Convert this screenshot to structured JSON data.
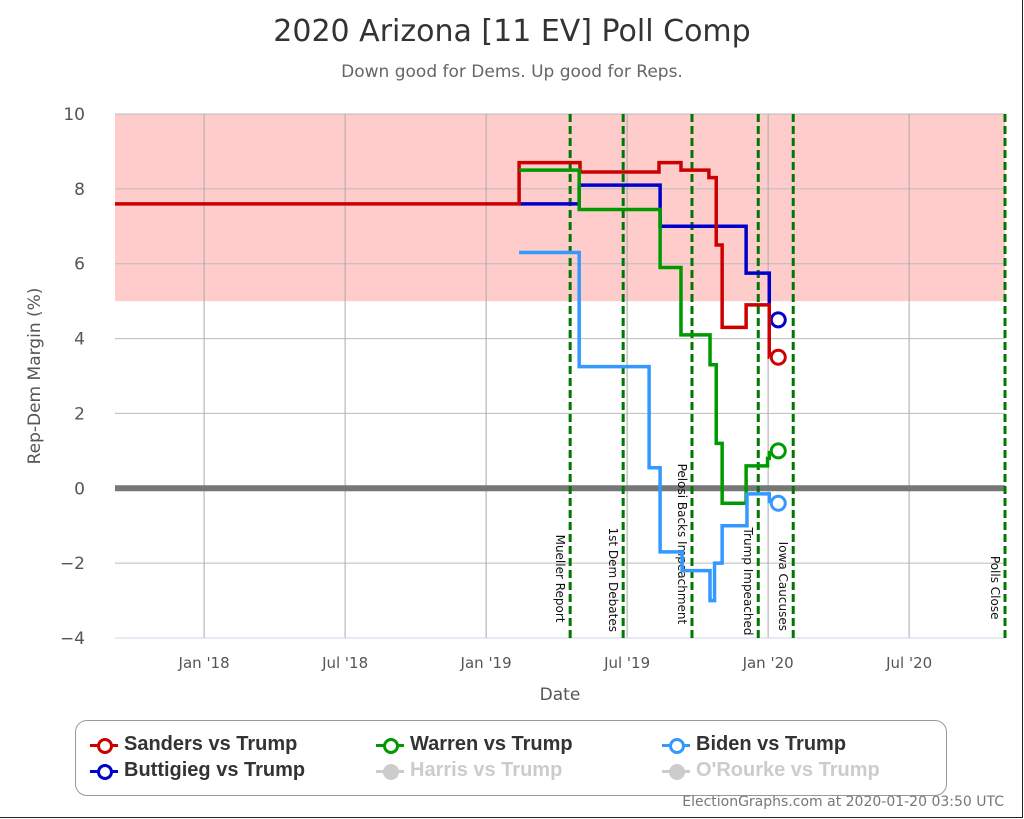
{
  "chart_data": {
    "type": "line",
    "title": "2020 Arizona [11 EV] Poll Comp",
    "subtitle": "Down good for Dems. Up good for Reps.",
    "xlabel": "Date",
    "ylabel": "Rep-Dem Margin (%)",
    "xlim": [
      2017.684,
      2020.84
    ],
    "ylim": [
      -4,
      10
    ],
    "xticks": [
      {
        "x": 2018.0,
        "label": "Jan '18"
      },
      {
        "x": 2018.5,
        "label": "Jul '18"
      },
      {
        "x": 2019.0,
        "label": "Jan '19"
      },
      {
        "x": 2019.5,
        "label": "Jul '19"
      },
      {
        "x": 2020.0,
        "label": "Jan '20"
      },
      {
        "x": 2020.5,
        "label": "Jul '20"
      }
    ],
    "yticks": [
      -4,
      -2,
      0,
      2,
      4,
      6,
      8,
      10
    ],
    "shaded_band": {
      "from": 5,
      "to": 10,
      "color": "#ffcccc"
    },
    "events": [
      {
        "x": 2019.298,
        "label": "Mueller Report"
      },
      {
        "x": 2019.486,
        "label": "1st Dem Debates"
      },
      {
        "x": 2019.73,
        "label": "Pelosi Backs Impeachment"
      },
      {
        "x": 2019.965,
        "label": "Trump Impeached"
      },
      {
        "x": 2020.089,
        "label": "Iowa Caucuses"
      },
      {
        "x": 2020.84,
        "label": "Polls Close"
      }
    ],
    "series": [
      {
        "name": "Sanders vs Trump",
        "color": "#cc0000",
        "active": true,
        "steps": [
          [
            2017.684,
            7.6
          ],
          [
            2019.117,
            8.7
          ],
          [
            2019.333,
            8.45
          ],
          [
            2019.613,
            8.7
          ],
          [
            2019.691,
            8.5
          ],
          [
            2019.79,
            8.3
          ],
          [
            2019.816,
            6.5
          ],
          [
            2019.837,
            4.3
          ],
          [
            2019.922,
            4.9
          ],
          [
            2020.004,
            3.5
          ]
        ],
        "end": [
          2020.036,
          3.5
        ]
      },
      {
        "name": "Warren vs Trump",
        "color": "#009900",
        "active": true,
        "steps": [
          [
            2019.117,
            8.5
          ],
          [
            2019.33,
            7.45
          ],
          [
            2019.617,
            5.9
          ],
          [
            2019.691,
            4.1
          ],
          [
            2019.794,
            3.3
          ],
          [
            2019.816,
            1.2
          ],
          [
            2019.837,
            -0.4
          ],
          [
            2019.922,
            0.6
          ],
          [
            2019.998,
            0.8
          ]
        ],
        "end": [
          2020.036,
          1.0
        ]
      },
      {
        "name": "Biden vs Trump",
        "color": "#3399ff",
        "active": true,
        "steps": [
          [
            2019.117,
            6.3
          ],
          [
            2019.33,
            3.25
          ],
          [
            2019.578,
            0.55
          ],
          [
            2019.617,
            -1.7
          ],
          [
            2019.695,
            -2.2
          ],
          [
            2019.794,
            -3.0
          ],
          [
            2019.81,
            -2.0
          ],
          [
            2019.837,
            -1.0
          ],
          [
            2019.925,
            -0.15
          ]
        ],
        "end": [
          2020.036,
          -0.4
        ]
      },
      {
        "name": "Buttigieg vs Trump",
        "color": "#0000cc",
        "active": true,
        "steps": [
          [
            2019.117,
            7.6
          ],
          [
            2019.33,
            8.1
          ],
          [
            2019.617,
            7.0
          ],
          [
            2019.922,
            5.75
          ]
        ],
        "end": [
          2020.036,
          4.5
        ]
      },
      {
        "name": "Harris vs Trump",
        "color": "#cccccc",
        "active": false
      },
      {
        "name": "O'Rourke vs Trump",
        "color": "#cccccc",
        "active": false
      }
    ]
  },
  "credit": "ElectionGraphs.com at 2020-01-20 03:50 UTC"
}
